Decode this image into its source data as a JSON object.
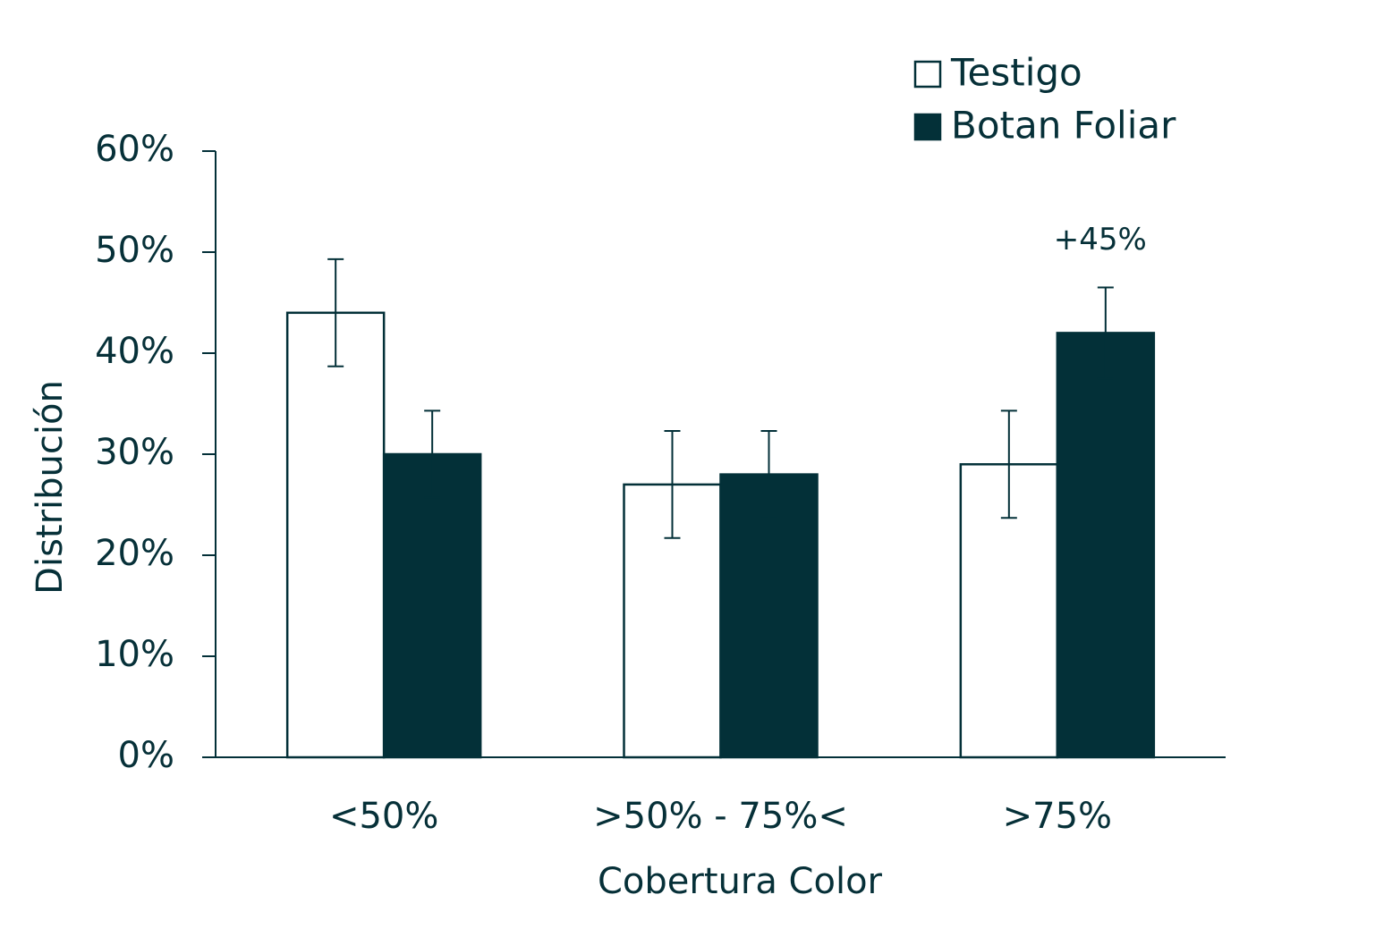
{
  "chart_data": {
    "type": "bar",
    "ylabel": "Distribución",
    "xlabel": "Cobertura Color",
    "categories": [
      "<50%",
      ">50% - 75%<",
      ">75%"
    ],
    "series": [
      {
        "name": "Testigo",
        "color": "#ffffff",
        "values": [
          44,
          27,
          29
        ],
        "errors": [
          5.3,
          5.3,
          5.3
        ]
      },
      {
        "name": "Botan Foliar",
        "color": "#033038",
        "values": [
          30,
          28,
          42
        ],
        "errors": [
          4.3,
          4.3,
          4.5
        ]
      }
    ],
    "edge_color": "#033038",
    "annotations": [
      {
        "text": "+45%",
        "series": 1,
        "category": 2
      }
    ],
    "ylim": [
      0,
      60
    ],
    "yticks": [
      {
        "value": 0,
        "label": "0%"
      },
      {
        "value": 10,
        "label": "10%"
      },
      {
        "value": 20,
        "label": "20%"
      },
      {
        "value": 30,
        "label": "30%"
      },
      {
        "value": 40,
        "label": "40%"
      },
      {
        "value": 50,
        "label": "50%"
      },
      {
        "value": 60,
        "label": "60%"
      }
    ],
    "legend": "upper right",
    "grid": false
  }
}
